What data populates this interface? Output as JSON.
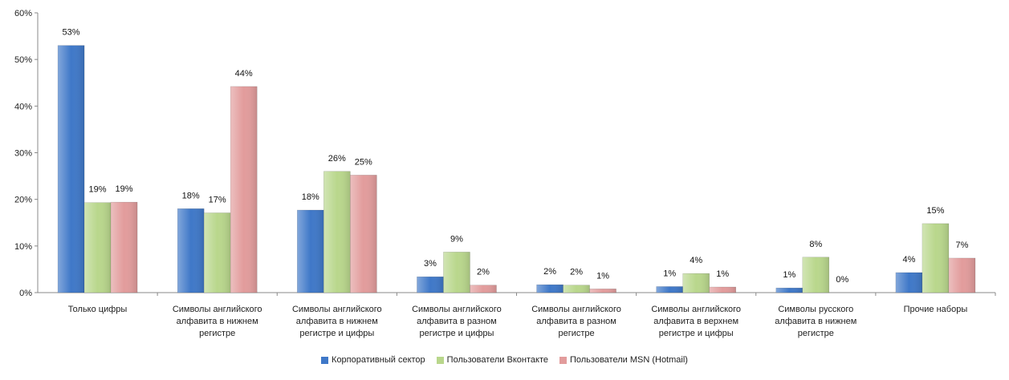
{
  "chart_data": {
    "type": "bar",
    "categories": [
      [
        "Только цифры"
      ],
      [
        "Символы английского",
        "алфавита в нижнем",
        "регистре"
      ],
      [
        "Символы английского",
        "алфавита в нижнем",
        "регистре и цифры"
      ],
      [
        "Символы английского",
        "алфавита в разном",
        "регистре и цифры"
      ],
      [
        "Символы английского",
        "алфавита в разном",
        "регистре"
      ],
      [
        "Символы английского",
        "алфавита в верхнем",
        "регистре и цифры"
      ],
      [
        "Символы русского",
        "алфавита в нижнем",
        "регистре"
      ],
      [
        "Прочие наборы"
      ]
    ],
    "series": [
      {
        "name": "Корпоративный сектор",
        "color": "#3f78c8",
        "values": [
          53,
          18,
          17.7,
          3.4,
          1.7,
          1.3,
          1.0,
          4.3
        ],
        "labels": [
          "53%",
          "18%",
          "18%",
          "3%",
          "2%",
          "1%",
          "1%",
          "4%"
        ]
      },
      {
        "name": "Пользователи Вконтакте",
        "color": "#b9d78c",
        "values": [
          19.3,
          17.1,
          26.0,
          8.7,
          1.6,
          4.1,
          7.6,
          14.8
        ],
        "labels": [
          "19%",
          "17%",
          "26%",
          "9%",
          "2%",
          "4%",
          "8%",
          "15%"
        ]
      },
      {
        "name": "Пользователи MSN (Hotmail)",
        "color": "#e29c9c",
        "values": [
          19.4,
          44.2,
          25.2,
          1.6,
          0.8,
          1.2,
          0.0,
          7.4
        ],
        "labels": [
          "19%",
          "44%",
          "25%",
          "2%",
          "1%",
          "1%",
          "0%",
          "7%"
        ]
      }
    ],
    "ylim": [
      0,
      60
    ],
    "yticks": [
      "0%",
      "10%",
      "20%",
      "30%",
      "40%",
      "50%",
      "60%"
    ],
    "grid": false,
    "legend_position": "bottom"
  }
}
